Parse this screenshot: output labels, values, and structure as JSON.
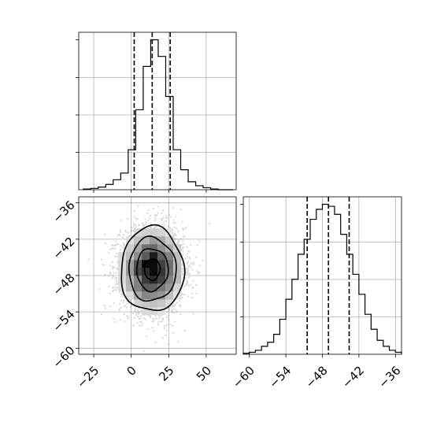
{
  "chart_data": {
    "type": "corner",
    "title": "",
    "grid": true,
    "parameters": [
      {
        "name": "",
        "range": [
          -35,
          70
        ],
        "ticks": [
          -25,
          0,
          25,
          50
        ],
        "tick_labels": [
          "−25",
          "0",
          "25",
          "50"
        ]
      },
      {
        "name": "",
        "range": [
          -61,
          -35
        ],
        "ticks": [
          -60,
          -54,
          -48,
          -42,
          -36
        ],
        "tick_labels": [
          "−60",
          "−54",
          "−48",
          "−42",
          "−36"
        ]
      }
    ],
    "marginals": [
      {
        "parameter": 0,
        "bin_edges": [
          -32,
          -27,
          -22,
          -17,
          -12,
          -7,
          -2,
          3,
          8,
          13,
          18,
          23,
          28,
          33,
          38,
          43,
          48,
          53,
          58,
          63,
          68
        ],
        "counts": [
          1,
          2,
          4,
          8,
          15,
          25,
          60,
          120,
          185,
          225,
          200,
          140,
          60,
          30,
          12,
          6,
          3,
          1,
          0,
          0
        ],
        "quantiles": [
          2,
          14,
          26
        ]
      },
      {
        "parameter": 1,
        "bin_edges": [
          -61,
          -60,
          -59,
          -58,
          -57,
          -56,
          -55,
          -54,
          -53,
          -52,
          -51,
          -50,
          -49,
          -48,
          -47,
          -46,
          -45,
          -44,
          -43,
          -42,
          -41,
          -40,
          -39,
          -38,
          -37,
          -36,
          -35
        ],
        "counts": [
          1,
          2,
          4,
          8,
          12,
          20,
          35,
          55,
          75,
          100,
          115,
          135,
          145,
          150,
          148,
          140,
          120,
          100,
          80,
          60,
          40,
          25,
          14,
          8,
          4,
          2
        ],
        "quantiles": [
          -50.5,
          -47,
          -43.6
        ]
      }
    ],
    "joint": {
      "x_parameter": 0,
      "y_parameter": 1,
      "center": [
        14,
        -47
      ],
      "sigma": [
        10.5,
        3.5
      ],
      "contour_levels": [
        0.5,
        1.0,
        1.5,
        2.0
      ]
    }
  }
}
